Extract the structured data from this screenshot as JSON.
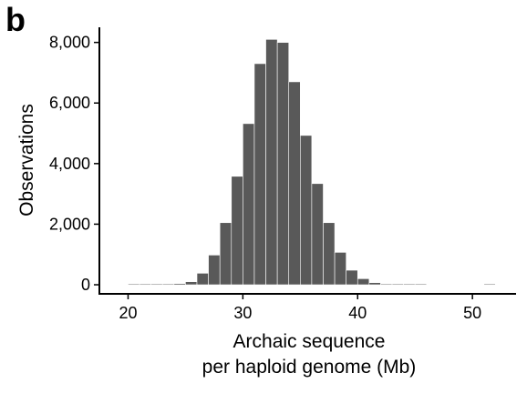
{
  "panel_label": "b",
  "chart_data": {
    "type": "bar",
    "subtype": "histogram",
    "title": "",
    "xlabel_line1": "Archaic sequence",
    "xlabel_line2": "per haploid genome (Mb)",
    "ylabel": "Observations",
    "xlim": [
      17.5,
      53.8
    ],
    "ylim": [
      -300,
      8500
    ],
    "x_ticks": [
      20,
      30,
      40,
      50
    ],
    "x_tick_labels": [
      "20",
      "30",
      "40",
      "50"
    ],
    "y_ticks": [
      0,
      2000,
      4000,
      6000,
      8000
    ],
    "y_tick_labels": [
      "0",
      "2,000",
      "4,000",
      "6,000",
      "8,000"
    ],
    "bin_width": 1,
    "bins": [
      {
        "x0": 20,
        "count": 5
      },
      {
        "x0": 21,
        "count": 5
      },
      {
        "x0": 22,
        "count": 10
      },
      {
        "x0": 23,
        "count": 15
      },
      {
        "x0": 24,
        "count": 40
      },
      {
        "x0": 25,
        "count": 100
      },
      {
        "x0": 26,
        "count": 380
      },
      {
        "x0": 27,
        "count": 980
      },
      {
        "x0": 28,
        "count": 2050
      },
      {
        "x0": 29,
        "count": 3580
      },
      {
        "x0": 30,
        "count": 5320
      },
      {
        "x0": 31,
        "count": 7300
      },
      {
        "x0": 32,
        "count": 8100
      },
      {
        "x0": 33,
        "count": 8000
      },
      {
        "x0": 34,
        "count": 6700
      },
      {
        "x0": 35,
        "count": 4930
      },
      {
        "x0": 36,
        "count": 3340
      },
      {
        "x0": 37,
        "count": 2050
      },
      {
        "x0": 38,
        "count": 1070
      },
      {
        "x0": 39,
        "count": 480
      },
      {
        "x0": 40,
        "count": 200
      },
      {
        "x0": 41,
        "count": 70
      },
      {
        "x0": 42,
        "count": 25
      },
      {
        "x0": 43,
        "count": 10
      },
      {
        "x0": 44,
        "count": 5
      },
      {
        "x0": 45,
        "count": 5
      },
      {
        "x0": 51,
        "count": 5
      }
    ],
    "grid": false,
    "legend": "none",
    "bar_color": "#595959",
    "bar_edge_color": "#ffffff"
  }
}
